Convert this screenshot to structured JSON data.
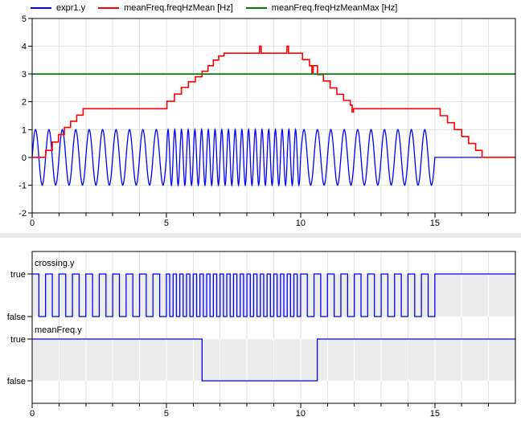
{
  "colors": {
    "background": "#ffffff",
    "grid": "#e2e2e2",
    "grid_on_band": "#ffffff",
    "frame": "#000000",
    "separator": "#e9e9e9",
    "band": "#ececec",
    "text": "#000000"
  },
  "chart_data": [
    {
      "id": "main-plot",
      "type": "line",
      "title": "",
      "xlabel": "",
      "ylabel": "",
      "x_range": [
        0,
        18
      ],
      "y_range": [
        -2,
        5
      ],
      "x_major_ticks": [
        0,
        5,
        10,
        15
      ],
      "x_minor_step": 1,
      "y_tick_step": 1,
      "grid": true,
      "legend_position": "top-left",
      "series": [
        {
          "name": "expr1.y",
          "color": "#0000ff",
          "kind": "chirp-sine",
          "amplitude": 1,
          "freq_segments": [
            {
              "t0": 0,
              "t1": 5,
              "f": 2
            },
            {
              "t0": 5,
              "t1": 10,
              "f": 4
            },
            {
              "t0": 10,
              "t1": 15,
              "f": 2
            }
          ],
          "tail": {
            "t0": 15,
            "t1": 18,
            "value": 0
          }
        },
        {
          "name": "meanFreq.freqHzMean [Hz]",
          "color": "#ff0000",
          "kind": "staircase",
          "steps": [
            [
              0,
              0
            ],
            [
              0.5,
              0.25
            ],
            [
              0.75,
              0.55
            ],
            [
              0.98,
              0.82
            ],
            [
              1.2,
              1.08
            ],
            [
              1.43,
              1.3
            ],
            [
              1.66,
              1.52
            ],
            [
              1.9,
              1.75
            ],
            [
              5.02,
              2.02
            ],
            [
              5.3,
              2.28
            ],
            [
              5.56,
              2.52
            ],
            [
              5.82,
              2.72
            ],
            [
              6.08,
              2.9
            ],
            [
              6.33,
              3.1
            ],
            [
              6.55,
              3.3
            ],
            [
              6.75,
              3.5
            ],
            [
              6.95,
              3.65
            ],
            [
              7.15,
              3.75
            ],
            [
              8.47,
              4.0
            ],
            [
              8.53,
              3.75
            ],
            [
              9.49,
              4.0
            ],
            [
              9.55,
              3.75
            ],
            [
              10.07,
              3.52
            ],
            [
              10.33,
              3.3
            ],
            [
              10.42,
              3.05
            ],
            [
              10.47,
              3.3
            ],
            [
              10.63,
              2.98
            ],
            [
              10.85,
              2.75
            ],
            [
              11.1,
              2.5
            ],
            [
              11.35,
              2.27
            ],
            [
              11.6,
              2.05
            ],
            [
              11.85,
              1.88
            ],
            [
              11.92,
              1.63
            ],
            [
              11.97,
              1.75
            ],
            [
              15.2,
              1.5
            ],
            [
              15.47,
              1.25
            ],
            [
              15.73,
              1.0
            ],
            [
              16.0,
              0.75
            ],
            [
              16.26,
              0.5
            ],
            [
              16.52,
              0.25
            ],
            [
              16.76,
              0
            ]
          ],
          "end": 18
        },
        {
          "name": "meanFreq.freqHzMeanMax [Hz]",
          "color": "#008000",
          "kind": "constant",
          "value": 3
        }
      ]
    },
    {
      "id": "boolean-plot",
      "type": "line",
      "x_range": [
        0,
        18
      ],
      "x_major_ticks": [
        0,
        5,
        10,
        15
      ],
      "x_minor_step": 1,
      "level_labels": {
        "high": "true",
        "low": "false"
      },
      "signals": [
        {
          "name": "crossing.y",
          "color": "#0000ff",
          "kind": "square-from-chirp",
          "start_state": true,
          "freq_segments": [
            {
              "t0": 0,
              "t1": 5,
              "f": 2
            },
            {
              "t0": 5,
              "t1": 10,
              "f": 4
            },
            {
              "t0": 10,
              "t1": 15,
              "f": 2
            }
          ],
          "tail": {
            "t0": 15,
            "t1": 18,
            "state": true
          }
        },
        {
          "name": "meanFreq.y",
          "color": "#0000ff",
          "kind": "boolean",
          "transitions": [
            [
              0,
              true
            ],
            [
              6.33,
              false
            ],
            [
              10.62,
              true
            ]
          ],
          "end": 18
        }
      ]
    }
  ]
}
